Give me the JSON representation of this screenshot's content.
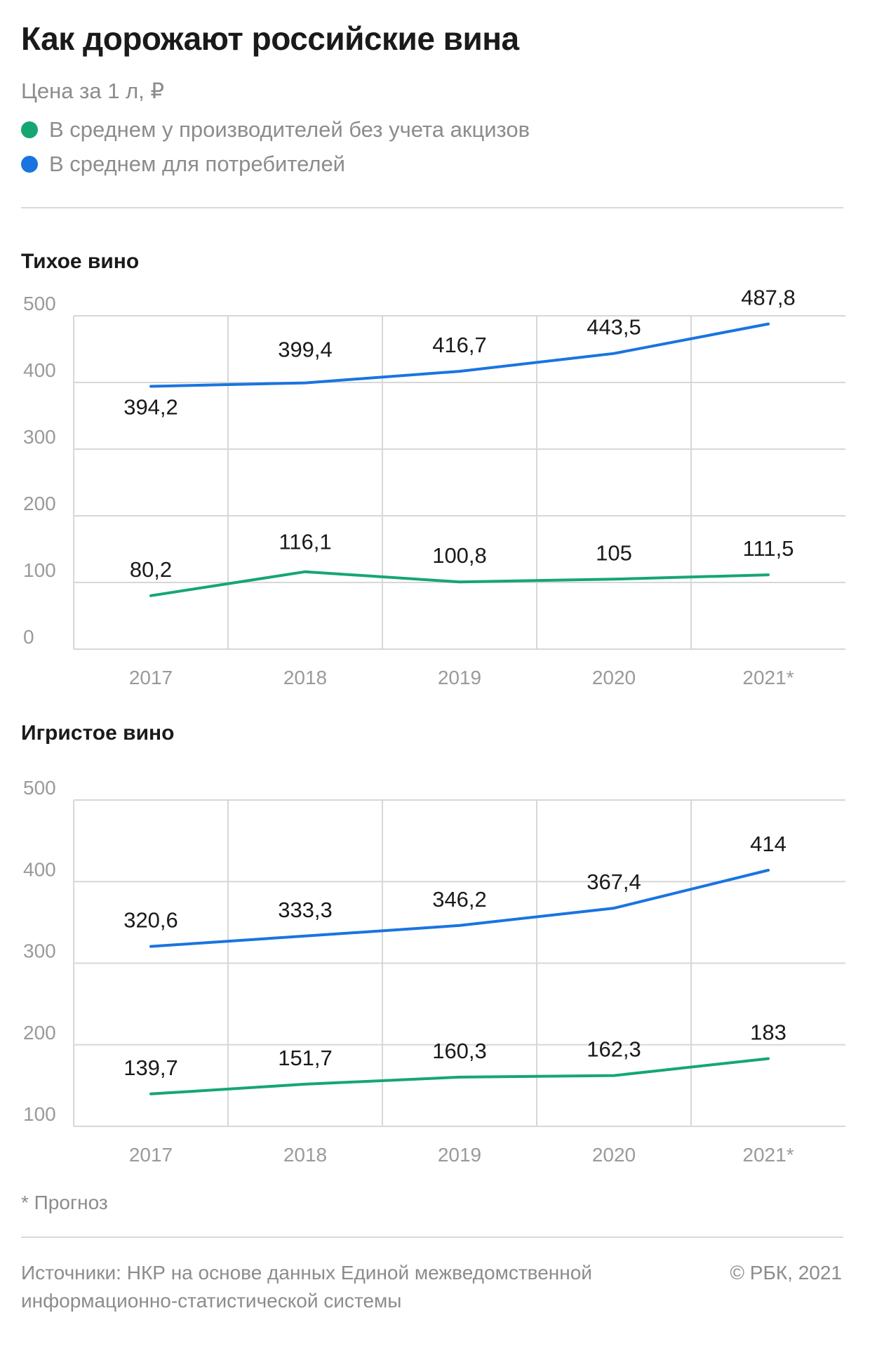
{
  "title": "Как дорожают российские вина",
  "subtitle": "Цена за 1 л, ₽",
  "legend": [
    {
      "label": "В среднем у производителей без учета акцизов",
      "color": "#16a672"
    },
    {
      "label": "В среднем для потребителей",
      "color": "#1a74e0"
    }
  ],
  "footnote": "* Прогноз",
  "source": "Источники: НКР на основе данных Единой межведомственной информационно-статистической системы",
  "copyright": "© РБК, 2021",
  "chart_data": [
    {
      "type": "line",
      "title": "Тихое вино",
      "categories": [
        "2017",
        "2018",
        "2019",
        "2020",
        "2021*"
      ],
      "ylim": [
        0,
        500
      ],
      "yticks": [
        0,
        100,
        200,
        300,
        400,
        500
      ],
      "grid": true,
      "series": [
        {
          "name": "В среднем для потребителей",
          "color": "#1a74e0",
          "values": [
            394.2,
            399.4,
            416.7,
            443.5,
            487.8
          ],
          "labels": [
            "394,2",
            "399,4",
            "416,7",
            "443,5",
            "487,8"
          ]
        },
        {
          "name": "В среднем у производителей без учета акцизов",
          "color": "#16a672",
          "values": [
            80.2,
            116.1,
            100.8,
            105,
            111.5
          ],
          "labels": [
            "80,2",
            "116,1",
            "100,8",
            "105",
            "111,5"
          ]
        }
      ]
    },
    {
      "type": "line",
      "title": "Игристое вино",
      "categories": [
        "2017",
        "2018",
        "2019",
        "2020",
        "2021*"
      ],
      "ylim": [
        100,
        500
      ],
      "yticks": [
        100,
        200,
        300,
        400,
        500
      ],
      "grid": true,
      "series": [
        {
          "name": "В среднем для потребителей",
          "color": "#1a74e0",
          "values": [
            320.6,
            333.3,
            346.2,
            367.4,
            414
          ],
          "labels": [
            "320,6",
            "333,3",
            "346,2",
            "367,4",
            "414"
          ]
        },
        {
          "name": "В среднем у производителей без учета акцизов",
          "color": "#16a672",
          "values": [
            139.7,
            151.7,
            160.3,
            162.3,
            183
          ],
          "labels": [
            "139,7",
            "151,7",
            "160,3",
            "162,3",
            "183"
          ]
        }
      ]
    }
  ]
}
